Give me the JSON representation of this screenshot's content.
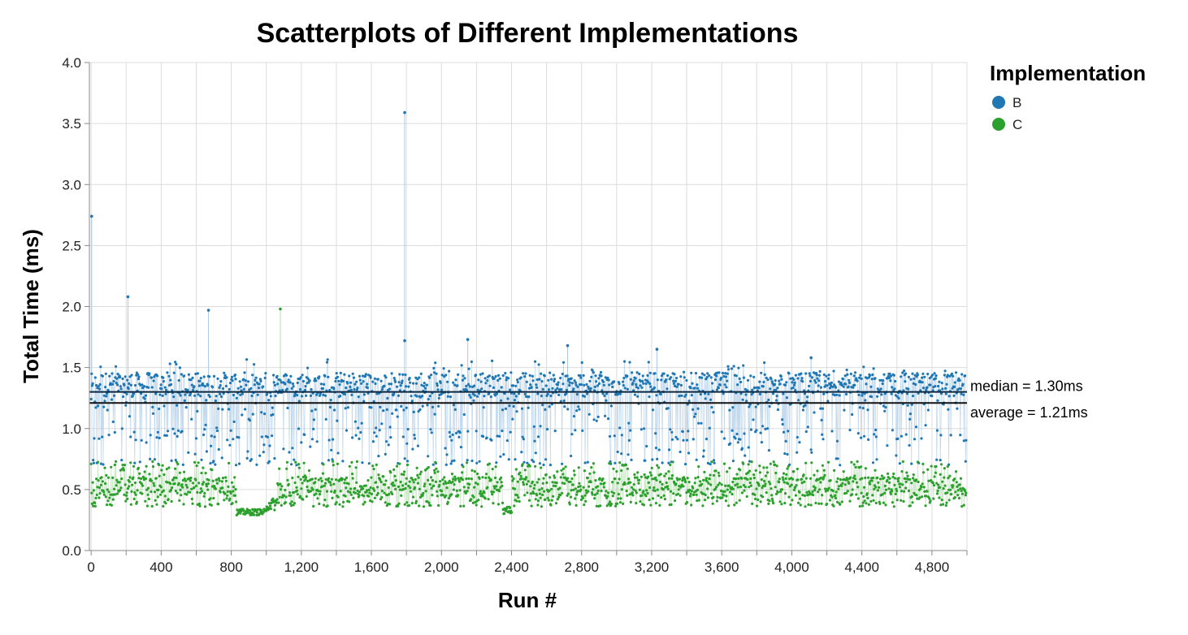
{
  "chart_data": {
    "type": "scatter",
    "title": "Scatterplots of Different Implementations",
    "xlabel": "Run #",
    "ylabel": "Total Time (ms)",
    "xlim": [
      -10,
      5000
    ],
    "ylim": [
      0,
      4.0
    ],
    "x_ticks": [
      0,
      200,
      400,
      600,
      800,
      1000,
      1200,
      1400,
      1600,
      1800,
      2000,
      2200,
      2400,
      2600,
      2800,
      3000,
      3200,
      3400,
      3600,
      3800,
      4000,
      4200,
      4400,
      4600,
      4800,
      5000
    ],
    "x_tick_labels": [
      "0",
      "400",
      "800",
      "1,200",
      "1,600",
      "2,000",
      "2,400",
      "2,800",
      "3,200",
      "3,600",
      "4,000",
      "4,400",
      "4,800"
    ],
    "x_tick_label_values": [
      0,
      400,
      800,
      1200,
      1600,
      2000,
      2400,
      2800,
      3200,
      3600,
      4000,
      4400,
      4800
    ],
    "y_ticks": [
      0.0,
      0.5,
      1.0,
      1.5,
      2.0,
      2.5,
      3.0,
      3.5,
      4.0
    ],
    "y_tick_labels": [
      "0.0",
      "0.5",
      "1.0",
      "1.5",
      "2.0",
      "2.5",
      "3.0",
      "3.5",
      "4.0"
    ],
    "grid": true,
    "legend": {
      "title": "Implementation",
      "placement": "top-right",
      "entries": [
        {
          "name": "B",
          "color": "#1f77b4"
        },
        {
          "name": "C",
          "color": "#2ca02c"
        }
      ]
    },
    "series": [
      {
        "name": "B",
        "color": "#1f77b4",
        "n_points": 5000,
        "typical_range": [
          0.7,
          1.5
        ],
        "dense_band": [
          1.25,
          1.45
        ],
        "notable_points": [
          {
            "x": 3,
            "y": 2.74
          },
          {
            "x": 210,
            "y": 2.08
          },
          {
            "x": 670,
            "y": 1.97
          },
          {
            "x": 1790,
            "y": 3.59
          },
          {
            "x": 1790,
            "y": 1.72
          },
          {
            "x": 2150,
            "y": 1.73
          },
          {
            "x": 2720,
            "y": 1.68
          },
          {
            "x": 3230,
            "y": 1.65
          },
          {
            "x": 4110,
            "y": 1.58
          }
        ]
      },
      {
        "name": "C",
        "color": "#2ca02c",
        "n_points": 5000,
        "typical_range": [
          0.3,
          0.75
        ],
        "dense_band": [
          0.45,
          0.6
        ],
        "notable_points": [
          {
            "x": 1080,
            "y": 1.98
          }
        ]
      }
    ],
    "reference_lines": [
      {
        "label": "median = 1.30ms",
        "value": 1.3
      },
      {
        "label": "average = 1.21ms",
        "value": 1.21
      }
    ]
  }
}
